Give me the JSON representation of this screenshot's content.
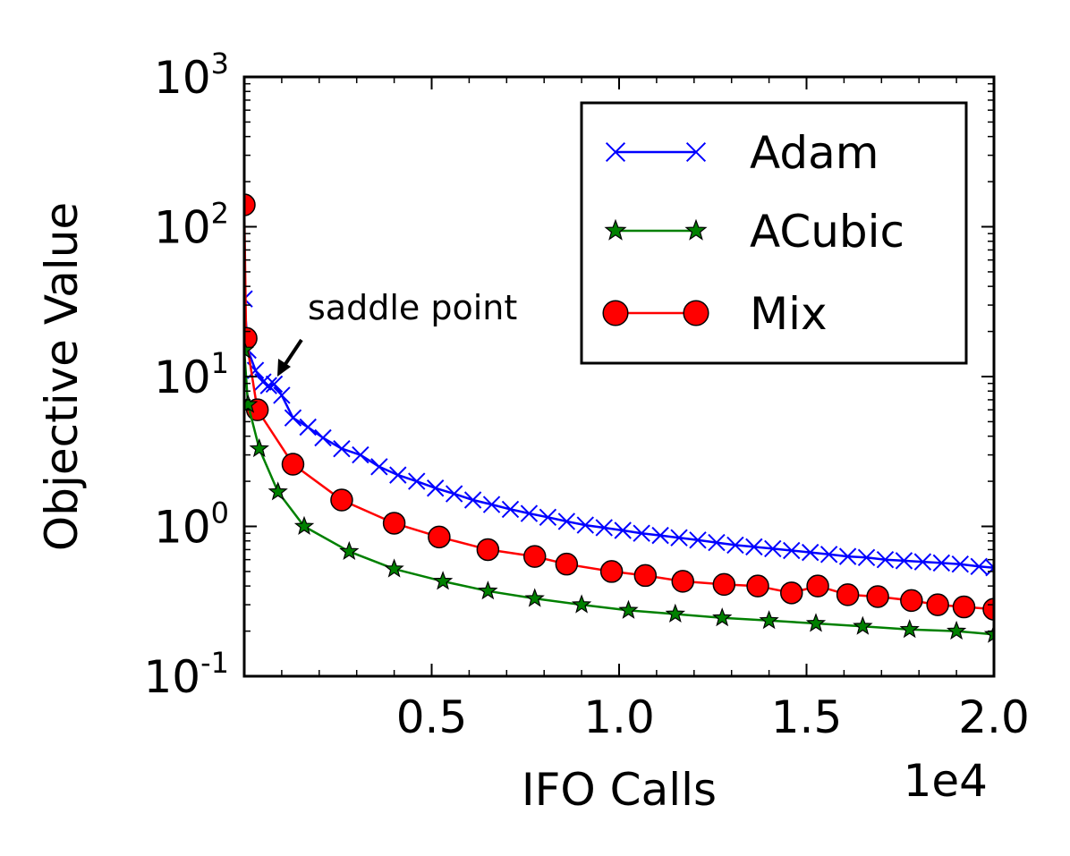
{
  "chart_data": {
    "type": "line",
    "xlabel": "IFO Calls",
    "ylabel": "Objective Value",
    "x_multiplier": "1e4",
    "xlim": [
      0,
      20000
    ],
    "ylim": [
      0.1,
      1000
    ],
    "yscale": "log",
    "x_ticks": [
      {
        "value": 5000,
        "label": "0.5"
      },
      {
        "value": 10000,
        "label": "1.0"
      },
      {
        "value": 15000,
        "label": "1.5"
      },
      {
        "value": 20000,
        "label": "2.0"
      }
    ],
    "y_ticks": [
      {
        "value": 0.1,
        "base": "10",
        "exp": "-1"
      },
      {
        "value": 1,
        "base": "10",
        "exp": "0"
      },
      {
        "value": 10,
        "base": "10",
        "exp": "1"
      },
      {
        "value": 100,
        "base": "10",
        "exp": "2"
      },
      {
        "value": 1000,
        "base": "10",
        "exp": "3"
      }
    ],
    "legend_position": "top-right",
    "annotation": {
      "text": "saddle point",
      "x": 900,
      "y": 9
    },
    "series": [
      {
        "name": "Adam",
        "color": "#0000ff",
        "marker": "x",
        "x": [
          0,
          100,
          300,
          500,
          650,
          800,
          1000,
          1300,
          1700,
          2100,
          2600,
          3100,
          3600,
          4100,
          4600,
          5100,
          5600,
          6100,
          6600,
          7100,
          7600,
          8100,
          8600,
          9100,
          9600,
          10100,
          10600,
          11100,
          11600,
          12100,
          12600,
          13100,
          13600,
          14100,
          14600,
          15100,
          15600,
          16100,
          16600,
          17100,
          17600,
          18100,
          18600,
          19100,
          19600,
          20000
        ],
        "y": [
          33,
          15,
          11,
          9.2,
          8.7,
          8.9,
          7.5,
          5.3,
          4.6,
          3.9,
          3.3,
          3.0,
          2.5,
          2.2,
          2.0,
          1.8,
          1.65,
          1.5,
          1.4,
          1.3,
          1.22,
          1.15,
          1.08,
          1.02,
          0.98,
          0.94,
          0.9,
          0.87,
          0.84,
          0.81,
          0.78,
          0.75,
          0.73,
          0.71,
          0.69,
          0.67,
          0.65,
          0.63,
          0.62,
          0.6,
          0.59,
          0.58,
          0.57,
          0.56,
          0.54,
          0.53
        ]
      },
      {
        "name": "ACubic",
        "color": "#008000",
        "marker": "star",
        "x": [
          0,
          100,
          400,
          900,
          1600,
          2800,
          4000,
          5300,
          6500,
          7750,
          9000,
          10250,
          11500,
          12750,
          14000,
          15250,
          16500,
          17750,
          19000,
          20000
        ],
        "y": [
          15,
          6.5,
          3.3,
          1.7,
          1.0,
          0.68,
          0.52,
          0.43,
          0.37,
          0.33,
          0.3,
          0.275,
          0.26,
          0.245,
          0.235,
          0.225,
          0.215,
          0.205,
          0.2,
          0.19
        ]
      },
      {
        "name": "Mix",
        "color": "#ff0000",
        "marker": "circle",
        "x": [
          0,
          50,
          350,
          1300,
          2600,
          4000,
          5200,
          6500,
          7750,
          8600,
          9800,
          10700,
          11700,
          12800,
          13700,
          14600,
          15300,
          16100,
          16900,
          17800,
          18500,
          19200,
          20000
        ],
        "y": [
          140,
          18,
          6.0,
          2.6,
          1.5,
          1.05,
          0.85,
          0.7,
          0.63,
          0.56,
          0.5,
          0.47,
          0.43,
          0.41,
          0.4,
          0.36,
          0.4,
          0.35,
          0.34,
          0.32,
          0.3,
          0.29,
          0.28
        ]
      }
    ]
  }
}
